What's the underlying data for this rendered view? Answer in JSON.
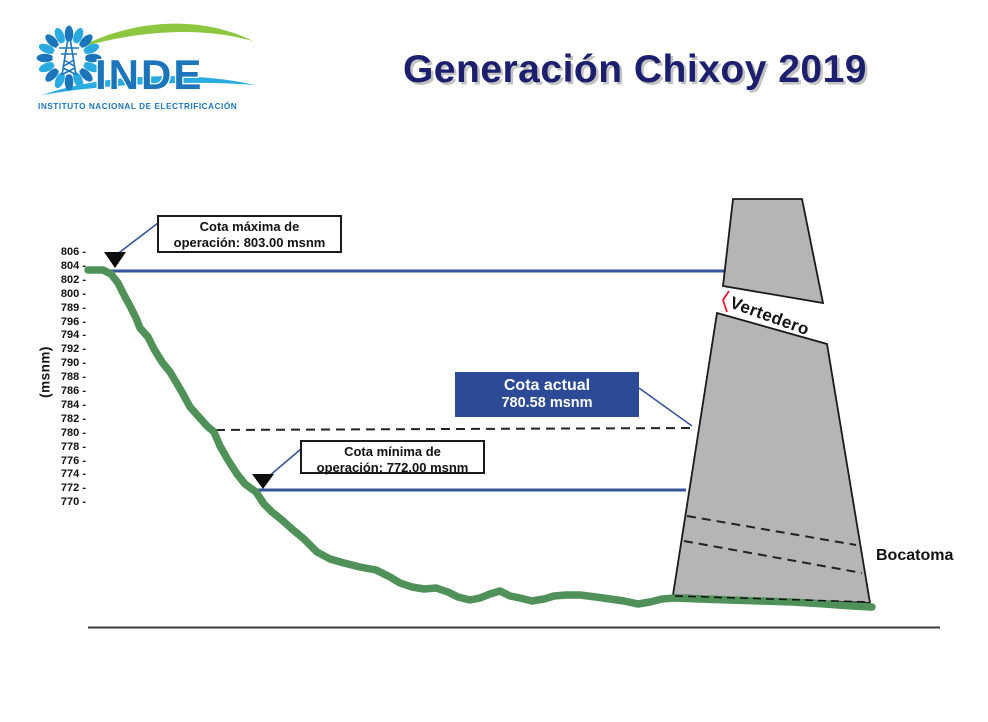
{
  "title": "Generación Chixoy 2019",
  "logo": {
    "wordmark": "INDE",
    "subtitle": "INSTITUTO NACIONAL DE ELECTRIFICACIÓN"
  },
  "chart": {
    "axis_unit": "(msnm)",
    "y_tick_labels": [
      "806 -",
      "804 -",
      "802 -",
      "800 -",
      "789 -",
      "796 -",
      "794 -",
      "792 -",
      "790 -",
      "788 -",
      "786 -",
      "784 -",
      "782 -",
      "780 -",
      "778 -",
      "776 -",
      "774 -",
      "772 -",
      "770 -"
    ],
    "callouts": {
      "max": {
        "line1": "Cota máxima de",
        "line2": "operación: 803.00 msnm"
      },
      "min": {
        "line1": "Cota mínima de",
        "line2": "operación: 772.00 msnm"
      },
      "actual": {
        "line1": "Cota actual",
        "line2": "780.58 msnm"
      }
    },
    "labels": {
      "vertedero": "Vertedero",
      "bocatoma": "Bocatoma"
    },
    "levels": {
      "max_msnm": "803.00",
      "min_msnm": "772.00",
      "actual_msnm": "780.58"
    }
  },
  "colors": {
    "line_blue": "#35549c",
    "box_blue": "#2d4a97",
    "curve_green": "#4f9158",
    "dam_gray": "#b5b5b5",
    "title_navy": "#1b1f6e",
    "logo_blue": "#1c75bb",
    "logo_light_blue": "#29abe2",
    "logo_green": "#8dc63f",
    "ink": "#1a1a1a"
  }
}
